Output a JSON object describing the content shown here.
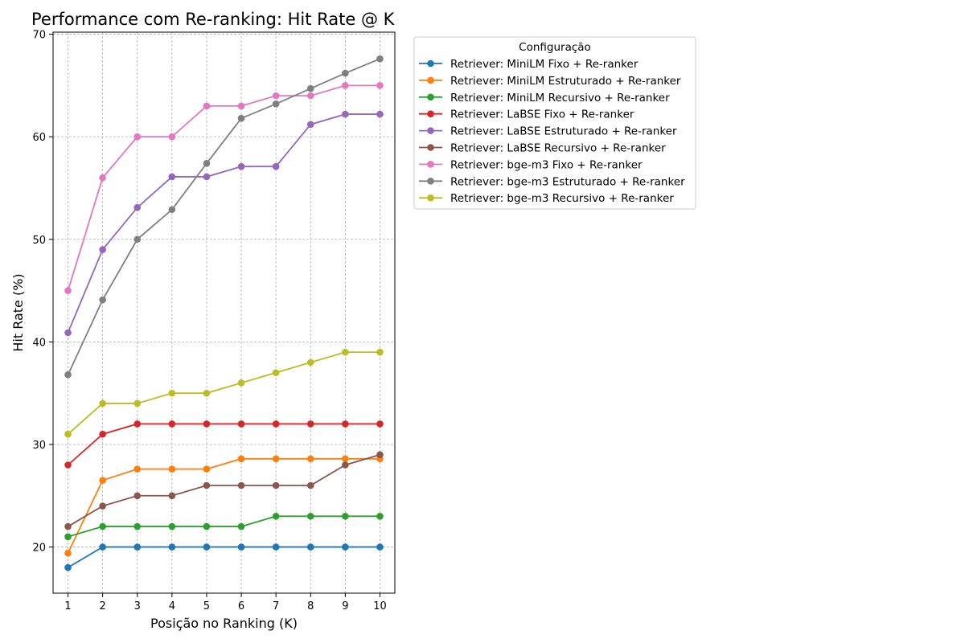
{
  "chart_data": {
    "type": "line",
    "title": "Performance com Re-ranking: Hit Rate @ K",
    "xlabel": "Posição no Ranking (K)",
    "ylabel": "Hit Rate (%)",
    "x": [
      1,
      2,
      3,
      4,
      5,
      6,
      7,
      8,
      9,
      10
    ],
    "xticks": [
      "1",
      "2",
      "3",
      "4",
      "5",
      "6",
      "7",
      "8",
      "9",
      "10"
    ],
    "yticks": [
      "20",
      "30",
      "40",
      "50",
      "60",
      "70"
    ],
    "xlim": [
      0.57,
      10.43
    ],
    "ylim": [
      15.5,
      70.2
    ],
    "grid": true,
    "legend_title": "Configuração",
    "legend_position": "outside-top-right",
    "series": [
      {
        "name": "Retriever: MiniLM Fixo + Re-ranker",
        "color": "#1f77b4",
        "values": [
          18,
          20,
          20,
          20,
          20,
          20,
          20,
          20,
          20,
          20
        ]
      },
      {
        "name": "Retriever: MiniLM Estruturado + Re-ranker",
        "color": "#ff7f0e",
        "values": [
          19.4,
          26.5,
          27.6,
          27.6,
          27.6,
          28.6,
          28.6,
          28.6,
          28.6,
          28.6
        ]
      },
      {
        "name": "Retriever: MiniLM Recursivo + Re-ranker",
        "color": "#2ca02c",
        "values": [
          21,
          22,
          22,
          22,
          22,
          22,
          23,
          23,
          23,
          23
        ]
      },
      {
        "name": "Retriever: LaBSE Fixo + Re-ranker",
        "color": "#d62728",
        "values": [
          28,
          31,
          32,
          32,
          32,
          32,
          32,
          32,
          32,
          32
        ]
      },
      {
        "name": "Retriever: LaBSE Estruturado + Re-ranker",
        "color": "#9467bd",
        "values": [
          40.9,
          49,
          53.1,
          56.1,
          56.1,
          57.1,
          57.1,
          61.2,
          62.2,
          62.2
        ]
      },
      {
        "name": "Retriever: LaBSE Recursivo + Re-ranker",
        "color": "#8c564b",
        "values": [
          22,
          24,
          25,
          25,
          26,
          26,
          26,
          26,
          28,
          29
        ]
      },
      {
        "name": "Retriever: bge-m3 Fixo + Re-ranker",
        "color": "#e377c2",
        "values": [
          45,
          56,
          60,
          60,
          63,
          63,
          64,
          64,
          65,
          65
        ]
      },
      {
        "name": "Retriever: bge-m3 Estruturado + Re-ranker",
        "color": "#7f7f7f",
        "values": [
          36.8,
          44.1,
          50,
          52.9,
          57.4,
          61.8,
          63.2,
          64.7,
          66.2,
          67.6
        ]
      },
      {
        "name": "Retriever: bge-m3 Recursivo + Re-ranker",
        "color": "#bcbd22",
        "values": [
          31,
          34,
          34,
          35,
          35,
          36,
          37,
          38,
          39,
          39
        ]
      }
    ]
  }
}
